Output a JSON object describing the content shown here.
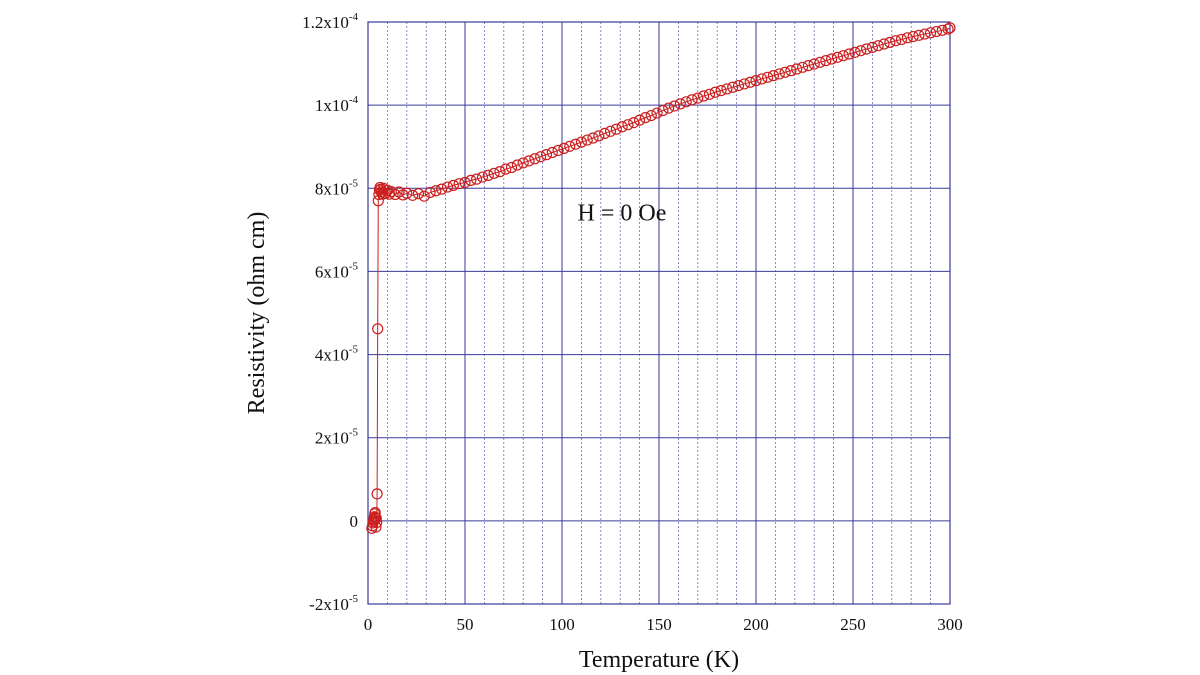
{
  "chart_data": {
    "type": "scatter",
    "title": "",
    "xlabel": "Temperature (K)",
    "ylabel": "Resistivity (ohm cm)",
    "xlim": [
      0,
      300
    ],
    "ylim": [
      -2e-05,
      0.00012
    ],
    "grid": true,
    "x_major_ticks": [
      {
        "value": 0,
        "label": "0"
      },
      {
        "value": 50,
        "label": "50"
      },
      {
        "value": 100,
        "label": "100"
      },
      {
        "value": 150,
        "label": "150"
      },
      {
        "value": 200,
        "label": "200"
      },
      {
        "value": 250,
        "label": "250"
      },
      {
        "value": 300,
        "label": "300"
      }
    ],
    "x_minor_step": 10,
    "y_major_ticks": [
      {
        "value": -2e-05,
        "mant": "-2x10",
        "exp": "-5"
      },
      {
        "value": 0,
        "mant": "0",
        "exp": ""
      },
      {
        "value": 2e-05,
        "mant": "2x10",
        "exp": "-5"
      },
      {
        "value": 4e-05,
        "mant": "4x10",
        "exp": "-5"
      },
      {
        "value": 6e-05,
        "mant": "6x10",
        "exp": "-5"
      },
      {
        "value": 8e-05,
        "mant": "8x10",
        "exp": "-5"
      },
      {
        "value": 0.0001,
        "mant": "1x10",
        "exp": "-4"
      },
      {
        "value": 0.00012,
        "mant": "1.2x10",
        "exp": "-4"
      }
    ],
    "annotation": {
      "text": "H = 0 Oe",
      "x": 108,
      "y": 7.23e-05
    },
    "series": [
      {
        "marker": "open-circle",
        "color": "#cc1f1f",
        "points": [
          [
            2.0,
            -1.8e-06
          ],
          [
            2.3,
            -1.2e-06
          ],
          [
            2.6,
            -5e-07
          ],
          [
            2.9,
            0.0
          ],
          [
            3.1,
            4e-07
          ],
          [
            3.3,
            1e-06
          ],
          [
            3.5,
            1.7e-06
          ],
          [
            3.7,
            2e-06
          ],
          [
            3.9,
            8e-07
          ],
          [
            4.1,
            -1.5e-06
          ],
          [
            4.3,
            6e-07
          ],
          [
            4.5,
            -4e-07
          ],
          [
            4.7,
            6.5e-06
          ],
          [
            5.0,
            4.62e-05
          ],
          [
            5.3,
            7.7e-05
          ],
          [
            5.6,
            7.85e-05
          ],
          [
            5.9,
            7.96e-05
          ],
          [
            6.2,
            8.02e-05
          ],
          [
            6.6,
            7.98e-05
          ],
          [
            7.0,
            7.91e-05
          ],
          [
            7.5,
            7.86e-05
          ],
          [
            8,
            8e-05
          ],
          [
            9,
            7.88e-05
          ],
          [
            10,
            7.95e-05
          ],
          [
            11,
            7.86e-05
          ],
          [
            12,
            7.92e-05
          ],
          [
            14,
            7.85e-05
          ],
          [
            16,
            7.91e-05
          ],
          [
            18,
            7.84e-05
          ],
          [
            20,
            7.88e-05
          ],
          [
            23,
            7.83e-05
          ],
          [
            26,
            7.87e-05
          ],
          [
            29,
            7.81e-05
          ],
          [
            32,
            7.9e-05
          ],
          [
            35,
            7.94e-05
          ],
          [
            38,
            7.98e-05
          ],
          [
            41,
            8.03e-05
          ],
          [
            44,
            8.07e-05
          ],
          [
            47,
            8.11e-05
          ],
          [
            50,
            8.14e-05
          ],
          [
            53,
            8.19e-05
          ],
          [
            56,
            8.22e-05
          ],
          [
            59,
            8.27e-05
          ],
          [
            62,
            8.31e-05
          ],
          [
            65,
            8.36e-05
          ],
          [
            68,
            8.4e-05
          ],
          [
            71,
            8.46e-05
          ],
          [
            74,
            8.5e-05
          ],
          [
            77,
            8.56e-05
          ],
          [
            80,
            8.61e-05
          ],
          [
            83,
            8.66e-05
          ],
          [
            86,
            8.71e-05
          ],
          [
            89,
            8.76e-05
          ],
          [
            92,
            8.81e-05
          ],
          [
            95,
            8.86e-05
          ],
          [
            98,
            8.91e-05
          ],
          [
            101,
            8.96e-05
          ],
          [
            104,
            9.01e-05
          ],
          [
            107,
            9.06e-05
          ],
          [
            110,
            9.11e-05
          ],
          [
            113,
            9.16e-05
          ],
          [
            116,
            9.21e-05
          ],
          [
            119,
            9.26e-05
          ],
          [
            122,
            9.32e-05
          ],
          [
            125,
            9.37e-05
          ],
          [
            128,
            9.42e-05
          ],
          [
            131,
            9.48e-05
          ],
          [
            134,
            9.53e-05
          ],
          [
            137,
            9.58e-05
          ],
          [
            140,
            9.64e-05
          ],
          [
            143,
            9.7e-05
          ],
          [
            146,
            9.75e-05
          ],
          [
            149,
            9.81e-05
          ],
          [
            152,
            9.87e-05
          ],
          [
            155,
            9.93e-05
          ],
          [
            158,
            9.98e-05
          ],
          [
            161,
            0.0001003
          ],
          [
            164,
            0.0001008
          ],
          [
            167,
            0.0001013
          ],
          [
            170,
            0.0001017
          ],
          [
            173,
            0.0001022
          ],
          [
            176,
            0.0001026
          ],
          [
            179,
            0.0001031
          ],
          [
            182,
            0.0001035
          ],
          [
            185,
            0.0001039
          ],
          [
            188,
            0.0001043
          ],
          [
            191,
            0.0001047
          ],
          [
            194,
            0.0001051
          ],
          [
            197,
            0.0001055
          ],
          [
            200,
            0.0001059
          ],
          [
            203,
            0.0001063
          ],
          [
            206,
            0.0001067
          ],
          [
            209,
            0.0001071
          ],
          [
            212,
            0.0001075
          ],
          [
            215,
            0.0001079
          ],
          [
            218,
            0.0001083
          ],
          [
            221,
            0.0001087
          ],
          [
            224,
            0.0001091
          ],
          [
            227,
            0.0001095
          ],
          [
            230,
            0.0001099
          ],
          [
            233,
            0.0001103
          ],
          [
            236,
            0.0001107
          ],
          [
            239,
            0.0001111
          ],
          [
            242,
            0.0001115
          ],
          [
            245,
            0.0001119
          ],
          [
            248,
            0.0001123
          ],
          [
            251,
            0.0001127
          ],
          [
            254,
            0.0001131
          ],
          [
            257,
            0.0001135
          ],
          [
            260,
            0.0001139
          ],
          [
            263,
            0.0001143
          ],
          [
            266,
            0.0001147
          ],
          [
            269,
            0.0001151
          ],
          [
            272,
            0.0001155
          ],
          [
            275,
            0.0001158
          ],
          [
            278,
            0.0001162
          ],
          [
            281,
            0.0001165
          ],
          [
            284,
            0.0001168
          ],
          [
            287,
            0.0001171
          ],
          [
            290,
            0.0001174
          ],
          [
            293,
            0.0001177
          ],
          [
            296,
            0.000118
          ],
          [
            299,
            0.0001183
          ],
          [
            300,
            0.0001186
          ]
        ]
      }
    ]
  }
}
